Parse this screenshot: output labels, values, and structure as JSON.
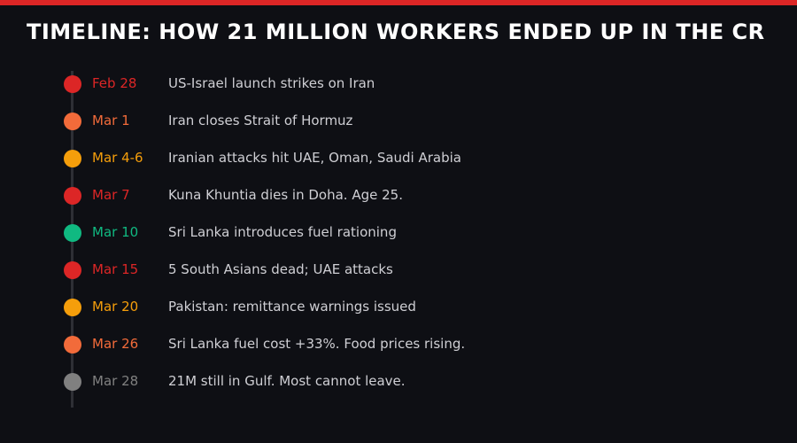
{
  "header": {
    "title": "TIMELINE: HOW 21 MILLION WORKERS ENDED UP IN THE CR"
  },
  "events": [
    {
      "date": "Feb 28",
      "text": "US-Israel launch strikes on Iran",
      "color": "#dc2626"
    },
    {
      "date": "Mar 1",
      "text": "Iran closes Strait of Hormuz",
      "color": "#f26b3a"
    },
    {
      "date": "Mar 4-6",
      "text": "Iranian attacks hit UAE, Oman, Saudi Arabia",
      "color": "#f59e0b"
    },
    {
      "date": "Mar 7",
      "text": "Kuna Khuntia dies in Doha. Age 25.",
      "color": "#dc2626"
    },
    {
      "date": "Mar 10",
      "text": "Sri Lanka introduces fuel rationing",
      "color": "#10b981"
    },
    {
      "date": "Mar 15",
      "text": "5 South Asians dead; UAE attacks",
      "color": "#dc2626"
    },
    {
      "date": "Mar 20",
      "text": "Pakistan: remittance warnings issued",
      "color": "#f59e0b"
    },
    {
      "date": "Mar 26",
      "text": "Sri Lanka fuel cost +33%. Food prices rising.",
      "color": "#f26b3a"
    },
    {
      "date": "Mar 28",
      "text": "21M still in Gulf. Most cannot leave.",
      "color": "#808080"
    }
  ]
}
